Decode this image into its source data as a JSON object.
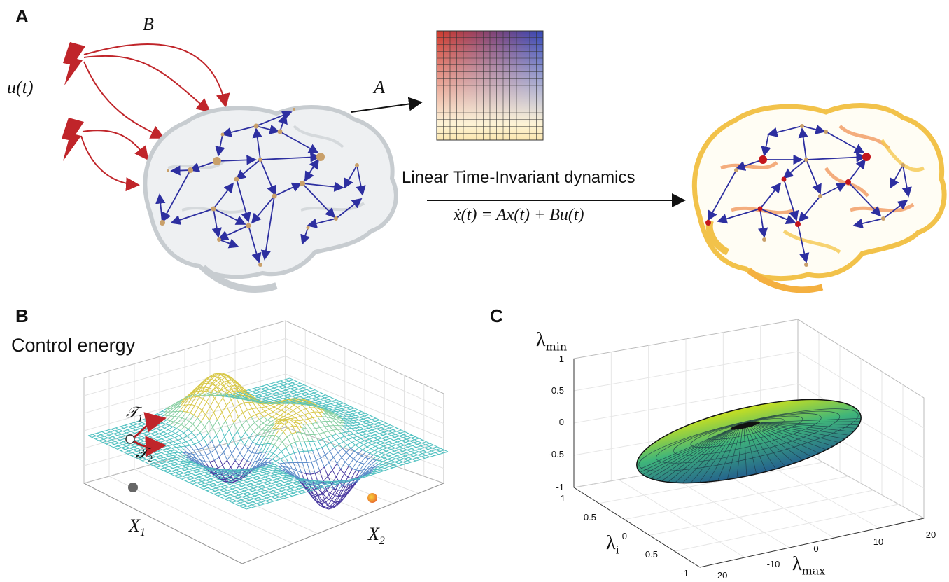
{
  "panels": {
    "a": {
      "letter": "A",
      "input_label": "u(t)",
      "b_label": "B",
      "a_label": "A",
      "dynamics_title": "Linear Time-Invariant dynamics",
      "equation": "ẋ(t) = Ax(t) + Bu(t)"
    },
    "b": {
      "letter": "B",
      "title": "Control energy",
      "traj1": "𝒯",
      "traj1_sub": "1",
      "traj2": "𝒯",
      "traj2_sub": "2",
      "x1": "X",
      "x1_sub": "1",
      "x2": "X",
      "x2_sub": "2"
    },
    "c": {
      "letter": "C",
      "z_label": "λ",
      "z_sub": "min",
      "y_label": "λ",
      "y_sub": "i",
      "x_label": "λ",
      "x_sub": "max",
      "z_ticks": [
        "1",
        "0.5",
        "0",
        "-0.5",
        "-1"
      ],
      "y_ticks": [
        "1",
        "0.5",
        "0",
        "-0.5",
        "-1"
      ],
      "x_ticks": [
        "-20",
        "-10",
        "0",
        "10",
        "20"
      ]
    }
  },
  "colors": {
    "stimulus": "#c0252a",
    "edge": "#2d2fa0",
    "node": "#c9a06a",
    "node_active": "#c4161c",
    "brain_gray": "#c7ccd0",
    "brain_heat": "#f2c24a"
  }
}
